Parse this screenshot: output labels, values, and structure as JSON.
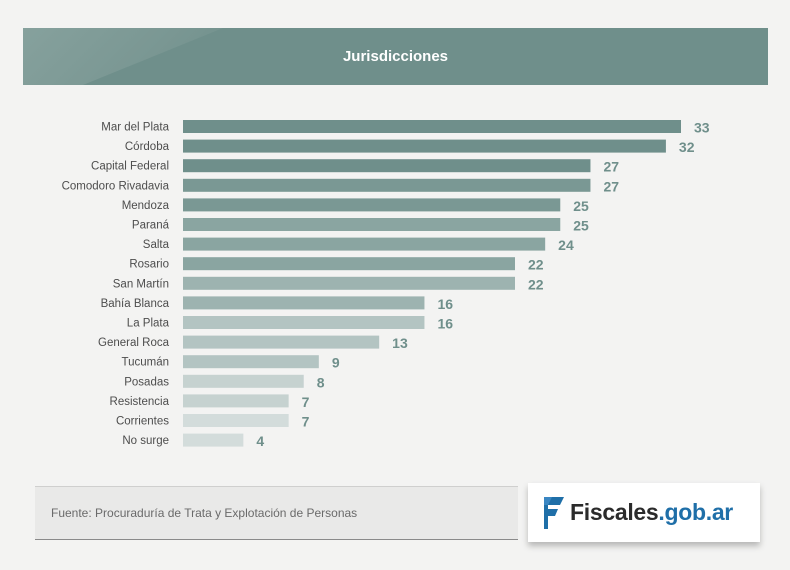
{
  "header": {
    "title": "Jurisdicciones"
  },
  "chart_data": {
    "type": "bar",
    "orientation": "horizontal",
    "title": "Jurisdicciones",
    "categories": [
      "Mar del Plata",
      "Córdoba",
      "Capital Federal",
      "Comodoro Rivadavia",
      "Mendoza",
      "Paraná",
      "Salta",
      "Rosario",
      "San Martín",
      "Bahía Blanca",
      "La Plata",
      "General Roca",
      "Tucumán",
      "Posadas",
      "Resistencia",
      "Corrientes",
      "No surge"
    ],
    "values": [
      33,
      32,
      27,
      27,
      25,
      25,
      24,
      22,
      22,
      16,
      16,
      13,
      9,
      8,
      7,
      7,
      4
    ],
    "xlabel": "",
    "ylabel": "",
    "xlim": [
      0,
      33
    ]
  },
  "colors": {
    "header": "#6f8f8b",
    "bar_ramp": [
      "#6f8f8b",
      "#7a9894",
      "#8aa5a1",
      "#9db3b0",
      "#b3c4c2",
      "#c6d2d0",
      "#d3dcdb"
    ],
    "value_text": "#6f8f8b"
  },
  "footer": {
    "source": "Fuente: Procuraduría de Trata y Explotación de Personas",
    "logo_part1": "Fiscales",
    "logo_part2": ".gob.ar",
    "logo_icon": "fiscales-flag-icon"
  }
}
